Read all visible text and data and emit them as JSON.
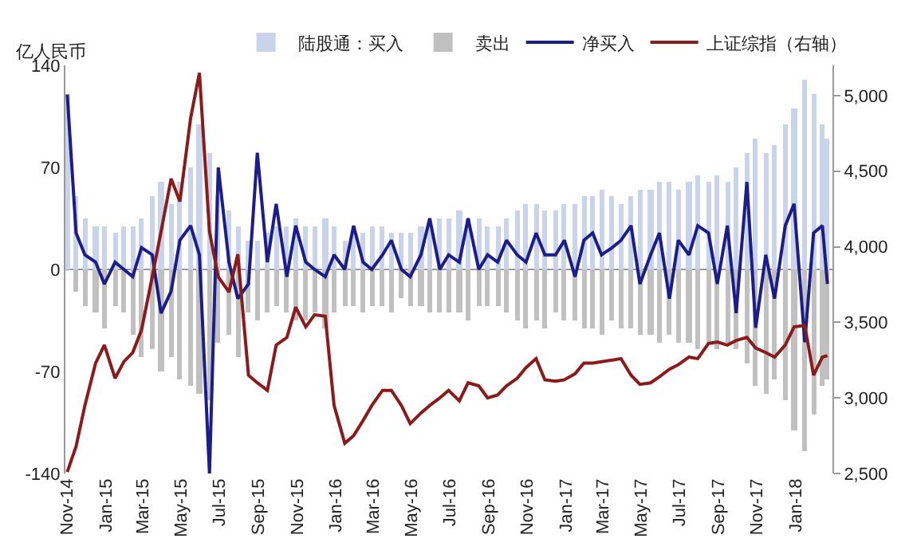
{
  "chart_data": {
    "type": "bar",
    "ylabel": "亿人民币",
    "legend": "top",
    "grid": false,
    "stacked": true,
    "ref_lines": [
      {
        "axis": "y",
        "value": 0,
        "color": "#999999"
      }
    ],
    "x": [
      "2014-11-17",
      "2014-12-01",
      "2014-12-15",
      "2015-01-01",
      "2015-01-15",
      "2015-02-01",
      "2015-02-15",
      "2015-03-01",
      "2015-03-15",
      "2015-04-01",
      "2015-04-15",
      "2015-05-01",
      "2015-05-15",
      "2015-06-01",
      "2015-06-15",
      "2015-07-01",
      "2015-07-15",
      "2015-08-01",
      "2015-08-15",
      "2015-09-01",
      "2015-09-15",
      "2015-10-01",
      "2015-10-15",
      "2015-11-01",
      "2015-11-15",
      "2015-12-01",
      "2015-12-15",
      "2016-01-01",
      "2016-01-15",
      "2016-02-01",
      "2016-02-15",
      "2016-03-01",
      "2016-03-15",
      "2016-04-01",
      "2016-04-15",
      "2016-05-01",
      "2016-05-15",
      "2016-06-01",
      "2016-06-15",
      "2016-07-01",
      "2016-07-15",
      "2016-08-01",
      "2016-08-15",
      "2016-09-01",
      "2016-09-15",
      "2016-10-01",
      "2016-10-15",
      "2016-11-01",
      "2016-11-15",
      "2016-12-01",
      "2016-12-15",
      "2017-01-01",
      "2017-01-15",
      "2017-02-01",
      "2017-02-15",
      "2017-03-01",
      "2017-03-15",
      "2017-04-01",
      "2017-04-15",
      "2017-05-01",
      "2017-05-15",
      "2017-06-01",
      "2017-06-15",
      "2017-07-01",
      "2017-07-15",
      "2017-08-01",
      "2017-08-15",
      "2017-09-01",
      "2017-09-15",
      "2017-10-01",
      "2017-10-15",
      "2017-11-01",
      "2017-11-15",
      "2017-12-01",
      "2017-12-15",
      "2018-01-01",
      "2018-01-15",
      "2018-02-01",
      "2018-02-15",
      "2018-03-01",
      "2018-03-09"
    ],
    "series": [
      {
        "name": "陆股通：买入",
        "color": "#c9d3ea",
        "values": [
          120,
          50,
          35,
          30,
          30,
          25,
          30,
          30,
          35,
          50,
          60,
          45,
          60,
          70,
          100,
          80,
          50,
          40,
          30,
          20,
          20,
          25,
          30,
          30,
          35,
          30,
          30,
          35,
          30,
          20,
          25,
          25,
          30,
          30,
          25,
          25,
          25,
          30,
          30,
          35,
          35,
          40,
          35,
          35,
          30,
          30,
          35,
          40,
          45,
          45,
          40,
          40,
          45,
          45,
          50,
          50,
          55,
          50,
          45,
          50,
          55,
          55,
          60,
          60,
          55,
          60,
          65,
          60,
          65,
          60,
          70,
          80,
          90,
          80,
          85,
          100,
          110,
          130,
          120,
          100,
          90
        ]
      },
      {
        "name": "卖出",
        "color": "#c0c0c0",
        "values": [
          0,
          -15,
          -25,
          -30,
          -40,
          -25,
          -30,
          -45,
          -60,
          -55,
          -70,
          -60,
          -75,
          -80,
          -85,
          -90,
          -50,
          -45,
          -60,
          -30,
          -35,
          -30,
          -25,
          -30,
          -35,
          -35,
          -30,
          -40,
          -30,
          -25,
          -25,
          -30,
          -25,
          -25,
          -30,
          -20,
          -25,
          -25,
          -30,
          -30,
          -30,
          -30,
          -35,
          -25,
          -25,
          -25,
          -30,
          -35,
          -40,
          -35,
          -40,
          -30,
          -35,
          -35,
          -40,
          -40,
          -45,
          -35,
          -40,
          -40,
          -45,
          -45,
          -50,
          -45,
          -50,
          -50,
          -55,
          -50,
          -55,
          -50,
          -55,
          -65,
          -80,
          -85,
          -75,
          -90,
          -110,
          -125,
          -100,
          -80,
          -75
        ]
      },
      {
        "name": "净买入",
        "type": "line",
        "color": "#1c1c8a",
        "values": [
          120,
          25,
          10,
          5,
          -10,
          5,
          0,
          -5,
          15,
          10,
          -30,
          -15,
          20,
          30,
          10,
          -140,
          70,
          5,
          -20,
          -10,
          80,
          5,
          45,
          -5,
          30,
          5,
          0,
          -5,
          10,
          0,
          30,
          5,
          0,
          10,
          20,
          0,
          -5,
          10,
          35,
          0,
          10,
          5,
          35,
          0,
          10,
          5,
          20,
          10,
          5,
          25,
          10,
          10,
          20,
          -5,
          20,
          25,
          10,
          15,
          20,
          30,
          -10,
          10,
          25,
          -20,
          20,
          10,
          30,
          25,
          -10,
          30,
          -30,
          60,
          -40,
          10,
          -20,
          30,
          45,
          -50,
          25,
          30,
          -10
        ]
      },
      {
        "name": "上证综指（右轴）",
        "type": "line",
        "axis": "y2",
        "color": "#8b1a1a",
        "values": [
          2510,
          2680,
          2950,
          3230,
          3350,
          3130,
          3240,
          3300,
          3450,
          3800,
          4100,
          4450,
          4300,
          4850,
          5150,
          4100,
          3800,
          3700,
          3950,
          3150,
          3100,
          3050,
          3350,
          3400,
          3600,
          3470,
          3550,
          3540,
          2950,
          2700,
          2750,
          2850,
          2950,
          3050,
          3050,
          2950,
          2830,
          2900,
          2950,
          3000,
          3050,
          2980,
          3100,
          3080,
          3000,
          3020,
          3080,
          3130,
          3200,
          3260,
          3120,
          3110,
          3120,
          3160,
          3230,
          3230,
          3240,
          3250,
          3260,
          3150,
          3090,
          3100,
          3140,
          3190,
          3220,
          3270,
          3260,
          3360,
          3370,
          3350,
          3380,
          3400,
          3330,
          3300,
          3270,
          3350,
          3470,
          3480,
          3150,
          3270,
          3280
        ]
      }
    ],
    "xlim": [
      "2014-11-14",
      "2018-03-17"
    ],
    "xticks": [
      {
        "value": "2014-11-17",
        "label": "Nov-14"
      },
      {
        "value": "2015-01-17",
        "label": "Jan-15"
      },
      {
        "value": "2015-03-17",
        "label": "Mar-15"
      },
      {
        "value": "2015-05-17",
        "label": "May-15"
      },
      {
        "value": "2015-07-17",
        "label": "Jul-15"
      },
      {
        "value": "2015-09-17",
        "label": "Sep-15"
      },
      {
        "value": "2015-11-17",
        "label": "Nov-15"
      },
      {
        "value": "2016-01-17",
        "label": "Jan-16"
      },
      {
        "value": "2016-03-17",
        "label": "Mar-16"
      },
      {
        "value": "2016-05-17",
        "label": "May-16"
      },
      {
        "value": "2016-07-17",
        "label": "Jul-16"
      },
      {
        "value": "2016-09-17",
        "label": "Sep-16"
      },
      {
        "value": "2016-11-17",
        "label": "Nov-16"
      },
      {
        "value": "2017-01-17",
        "label": "Jan-17"
      },
      {
        "value": "2017-03-17",
        "label": "Mar-17"
      },
      {
        "value": "2017-05-17",
        "label": "May-17"
      },
      {
        "value": "2017-07-17",
        "label": "Jul-17"
      },
      {
        "value": "2017-09-17",
        "label": "Sep-17"
      },
      {
        "value": "2017-11-17",
        "label": "Nov-17"
      },
      {
        "value": "2018-01-17",
        "label": "Jan-18"
      }
    ],
    "ylim": [
      -140,
      140
    ],
    "yticks": [
      -140,
      -70,
      0,
      70,
      140
    ],
    "y2lim": [
      2500,
      5200
    ],
    "y2ticks": [
      {
        "value": 2500,
        "label": "2,500"
      },
      {
        "value": 3000,
        "label": "3,000"
      },
      {
        "value": 3500,
        "label": "3,500"
      },
      {
        "value": 4000,
        "label": "4,000"
      },
      {
        "value": 4500,
        "label": "4,500"
      },
      {
        "value": 5000,
        "label": "5,000"
      }
    ]
  }
}
